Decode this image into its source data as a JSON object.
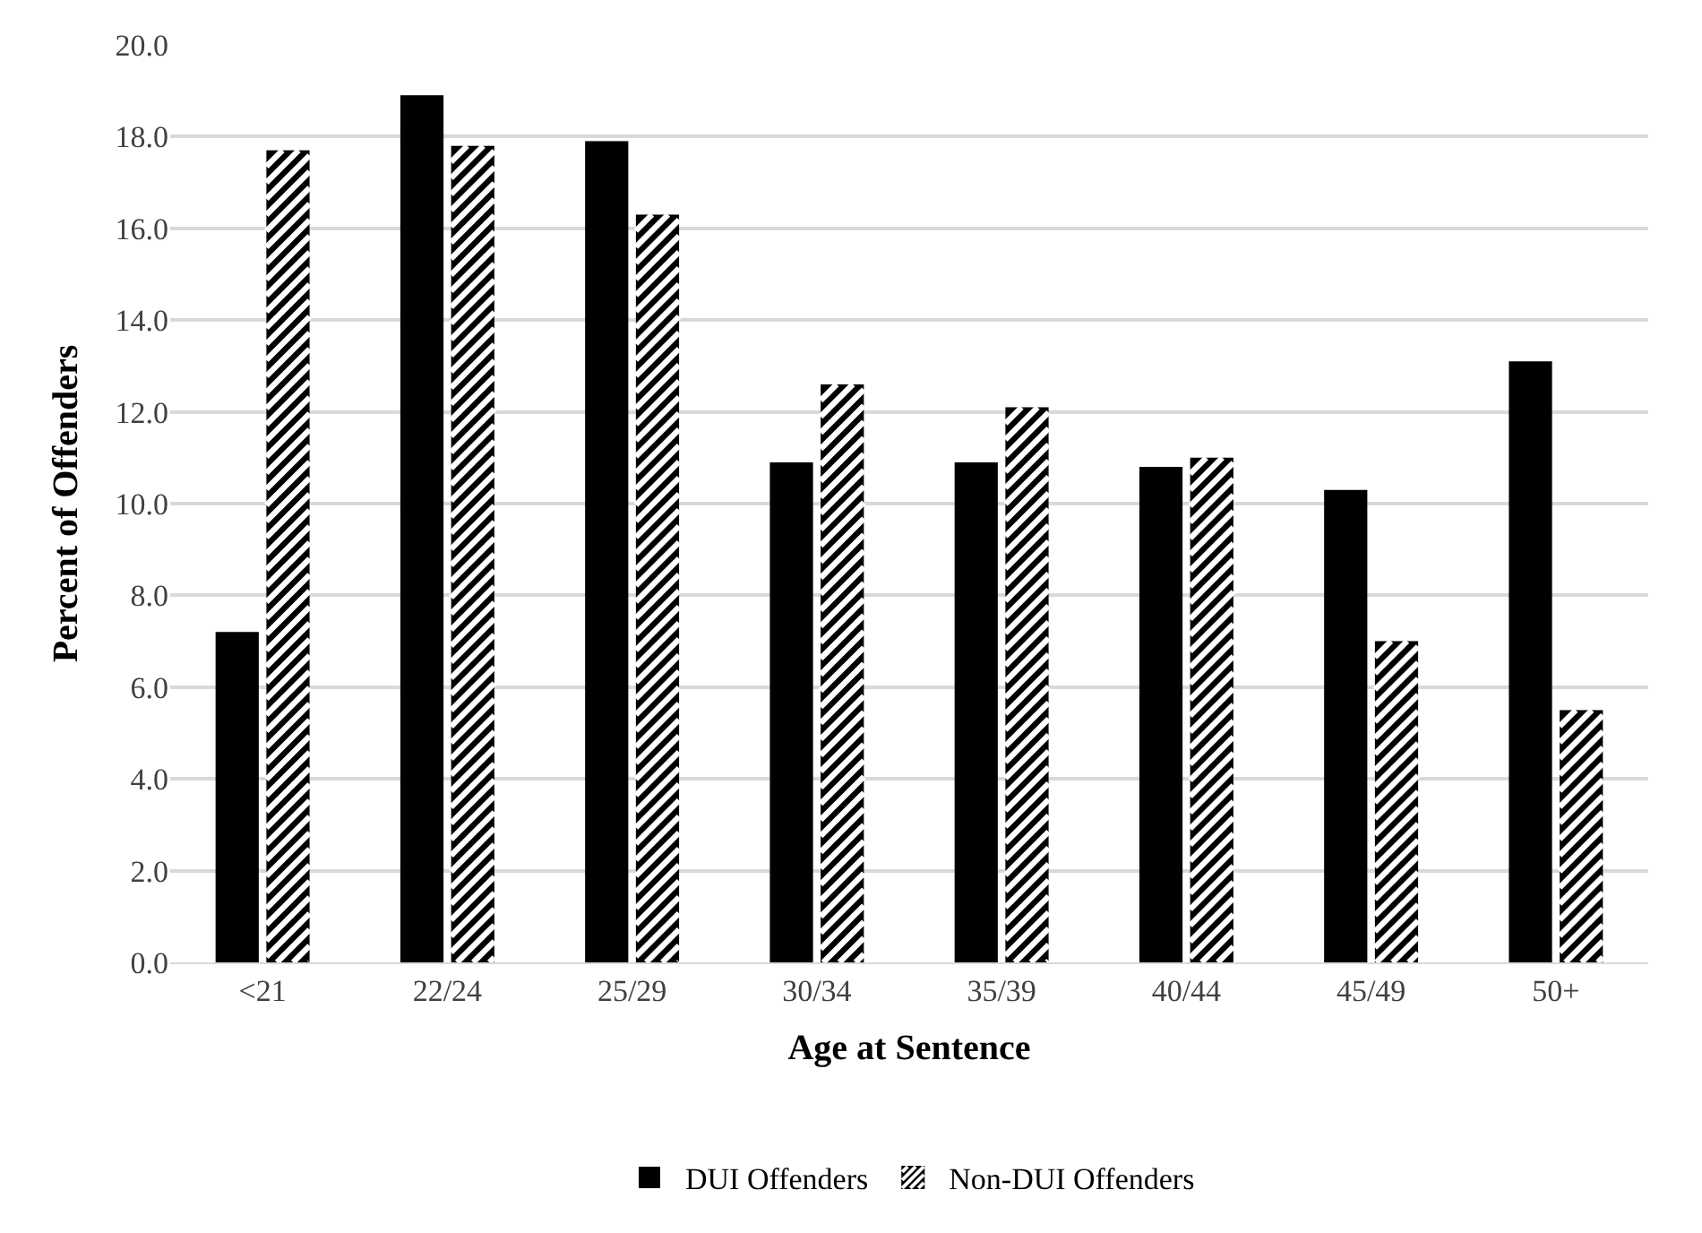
{
  "chart_data": {
    "type": "bar",
    "xlabel": "Age at Sentence",
    "ylabel": "Percent of Offenders",
    "categories": [
      "<21",
      "22/24",
      "25/29",
      "30/34",
      "35/39",
      "40/44",
      "45/49",
      "50+"
    ],
    "series": [
      {
        "name": "DUI Offenders",
        "color": "#000000",
        "values": [
          7.2,
          18.9,
          17.9,
          10.9,
          10.9,
          10.8,
          10.3,
          13.1
        ]
      },
      {
        "name": "Non-DUI Offenders",
        "color": "#000000",
        "values": [
          17.7,
          17.8,
          16.3,
          12.6,
          12.1,
          11.0,
          7.0,
          5.5
        ]
      }
    ],
    "ylim": [
      0,
      20
    ],
    "yticks": [
      {
        "value": 0,
        "label": "0.0"
      },
      {
        "value": 2,
        "label": "2.0"
      },
      {
        "value": 4,
        "label": "4.0"
      },
      {
        "value": 6,
        "label": "6.0"
      },
      {
        "value": 8,
        "label": "8.0"
      },
      {
        "value": 10,
        "label": "10.0"
      },
      {
        "value": 12,
        "label": "12.0"
      },
      {
        "value": 14,
        "label": "14.0"
      },
      {
        "value": 16,
        "label": "16.0"
      },
      {
        "value": 18,
        "label": "18.0"
      },
      {
        "value": 20,
        "label": "20.0"
      }
    ],
    "grid": "y",
    "legend": "bottom"
  }
}
